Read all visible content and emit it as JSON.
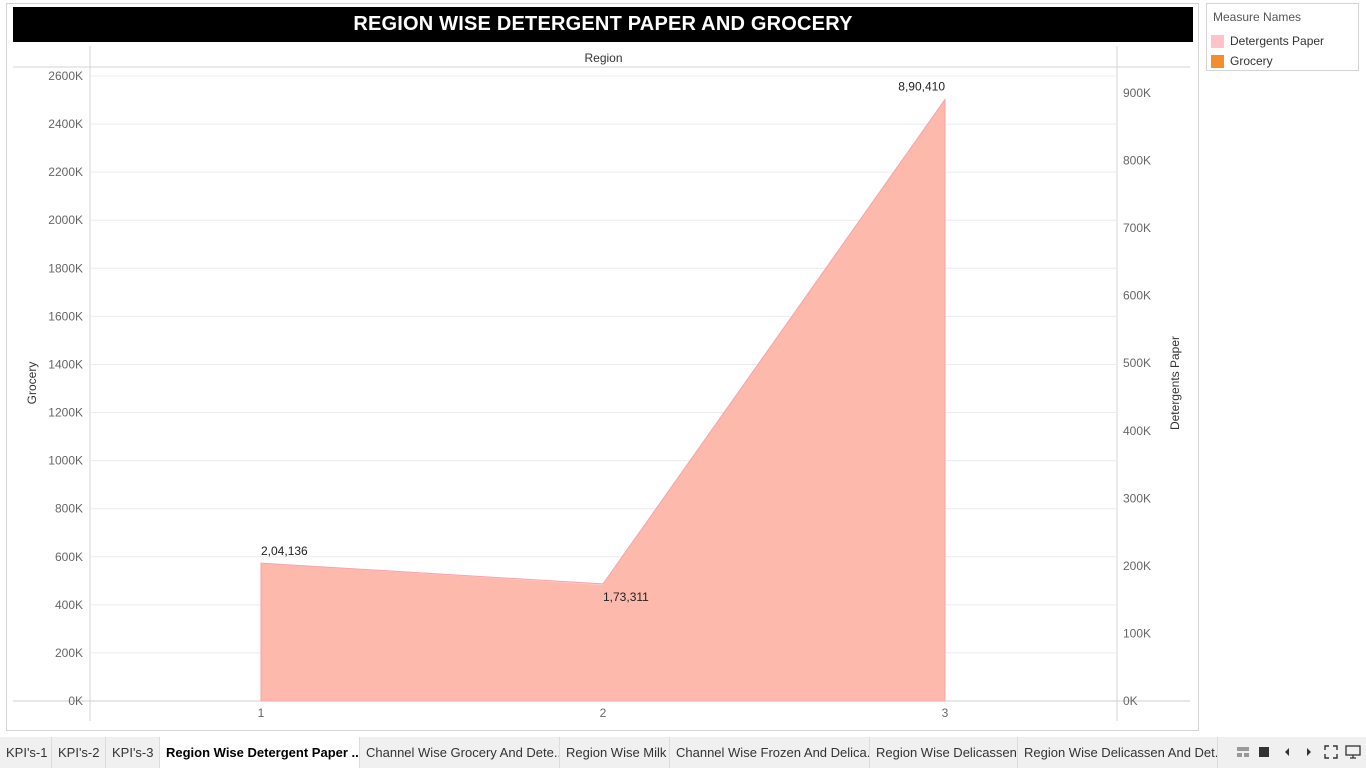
{
  "title": "REGION WISE DETERGENT PAPER AND GROCERY",
  "legend": {
    "header": "Measure Names",
    "items": [
      {
        "label": "Detergents Paper",
        "color": "#ffc2c9"
      },
      {
        "label": "Grocery",
        "color": "#f28e2b"
      }
    ]
  },
  "chart_data": {
    "type": "area",
    "title": "REGION WISE DETERGENT PAPER AND GROCERY",
    "top_axis_label": "Region",
    "xlabel": "",
    "categories": [
      "1",
      "2",
      "3"
    ],
    "y_left": {
      "label": "Grocery",
      "ylim": [
        0,
        2600000
      ],
      "ticks": [
        "0K",
        "200K",
        "400K",
        "600K",
        "800K",
        "1000K",
        "1200K",
        "1400K",
        "1600K",
        "1800K",
        "2000K",
        "2200K",
        "2400K",
        "2600K"
      ]
    },
    "y_right": {
      "label": "Detergents Paper",
      "ylim": [
        0,
        900000
      ],
      "ticks": [
        "0K",
        "100K",
        "200K",
        "300K",
        "400K",
        "500K",
        "600K",
        "700K",
        "800K",
        "900K"
      ]
    },
    "series": [
      {
        "name": "Grocery",
        "axis": "left",
        "color": "#f28e2b",
        "values": [
          570000,
          480000,
          2500000
        ]
      },
      {
        "name": "Detergents Paper",
        "axis": "right",
        "color": "#ffc2c9",
        "values": [
          204136,
          173311,
          890410
        ],
        "data_labels": [
          "2,04,136",
          "1,73,311",
          "8,90,410"
        ]
      }
    ],
    "grid": true
  },
  "tabs": [
    {
      "label": "KPI's-1",
      "active": false
    },
    {
      "label": "KPI's-2",
      "active": false
    },
    {
      "label": "KPI's-3",
      "active": false
    },
    {
      "label": "Region Wise Detergent Paper ...",
      "active": true
    },
    {
      "label": "Channel Wise Grocery And Dete...",
      "active": false
    },
    {
      "label": "Region Wise Milk",
      "active": false
    },
    {
      "label": "Channel Wise Frozen And Delica...",
      "active": false
    },
    {
      "label": "Region Wise Delicassen",
      "active": false
    },
    {
      "label": "Region Wise Delicassen And Det...",
      "active": false
    }
  ],
  "nav_icons": [
    "grid-view-icon",
    "filmstrip-icon",
    "prev-sheet-icon",
    "next-sheet-icon",
    "fullscreen-icon",
    "presentation-icon"
  ]
}
